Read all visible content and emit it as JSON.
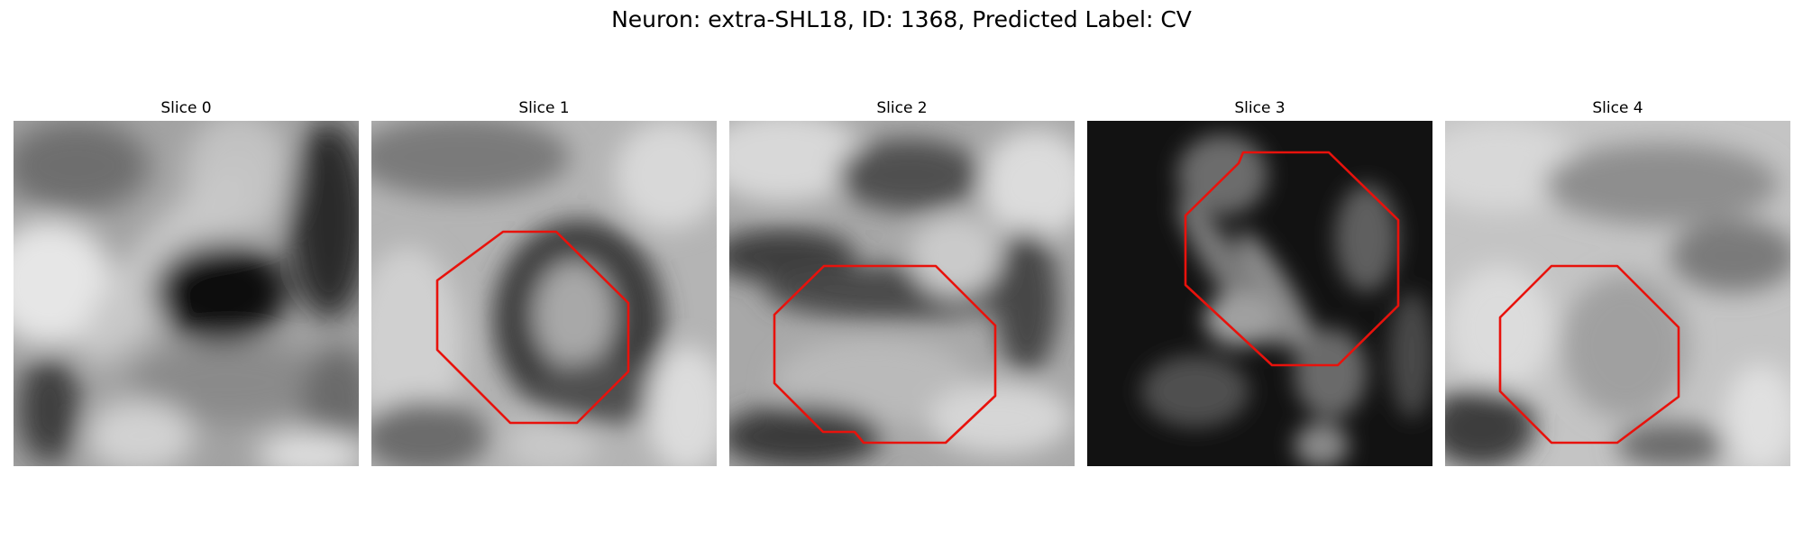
{
  "figure": {
    "title": "Neuron: extra-SHL18, ID: 1368, Predicted Label: CV"
  },
  "colors": {
    "contour": "#e8120c"
  },
  "slices": [
    {
      "title": "Slice 0",
      "has_contour": false
    },
    {
      "title": "Slice 1",
      "has_contour": true
    },
    {
      "title": "Slice 2",
      "has_contour": true
    },
    {
      "title": "Slice 3",
      "has_contour": true
    },
    {
      "title": "Slice 4",
      "has_contour": true
    }
  ]
}
